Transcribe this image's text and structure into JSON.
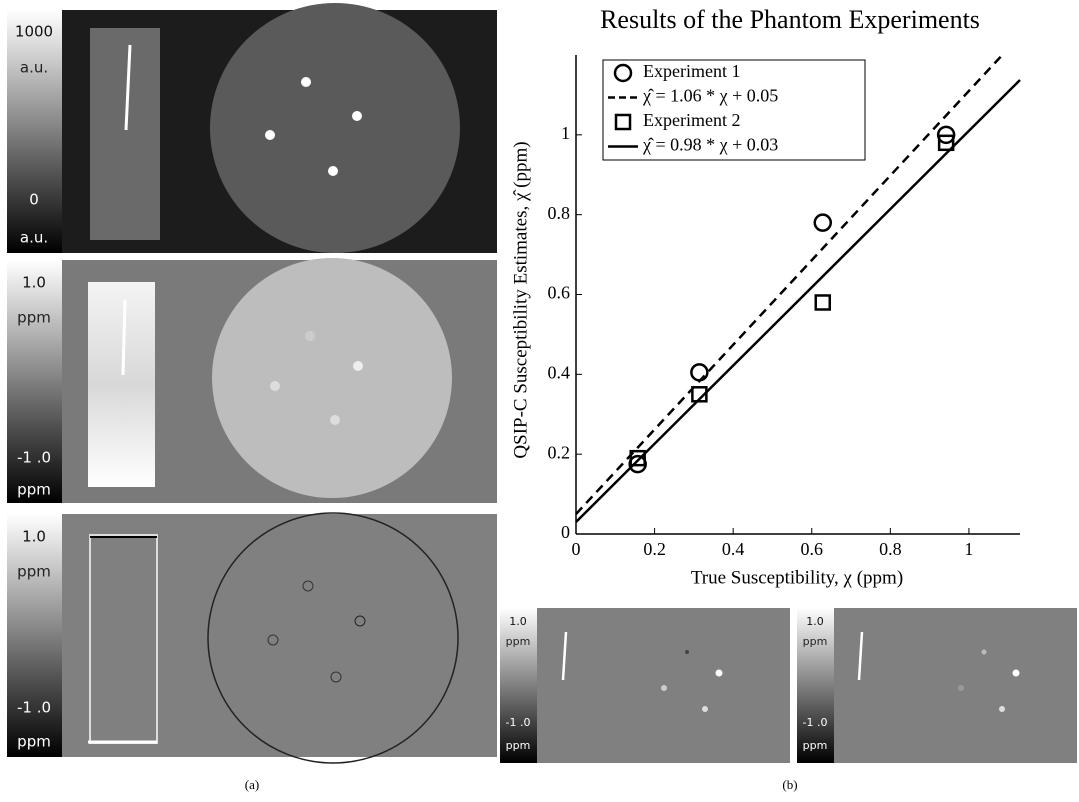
{
  "panels": {
    "a": {
      "label": "(a)",
      "colorbars": [
        {
          "top": "1000",
          "top_unit": "a.u.",
          "bottom": "0",
          "bottom_unit": "a.u."
        },
        {
          "top": "1.0",
          "top_unit": "ppm",
          "bottom": "-1 .0",
          "bottom_unit": "ppm"
        },
        {
          "top": "1.0",
          "top_unit": "ppm",
          "bottom": "-1 .0",
          "bottom_unit": "ppm"
        }
      ]
    },
    "b": {
      "label": "(b)",
      "colorbars": [
        {
          "top": "1.0",
          "top_unit": "ppm",
          "bottom": "-1 .0",
          "bottom_unit": "ppm"
        },
        {
          "top": "1.0",
          "top_unit": "ppm",
          "bottom": "-1 .0",
          "bottom_unit": "ppm"
        }
      ]
    }
  },
  "chart_data": {
    "type": "scatter",
    "title": "Results of the Phantom Experiments",
    "xlabel": "True Susceptibility, χ (ppm)",
    "ylabel": "QSIP-C Susceptibility Estimates, χ̂ (ppm)",
    "xlim": [
      0,
      1.13
    ],
    "ylim": [
      0,
      1.2
    ],
    "xticks": [
      0,
      0.2,
      0.4,
      0.6,
      0.8,
      1
    ],
    "yticks": [
      0,
      0.2,
      0.4,
      0.6,
      0.8,
      1
    ],
    "legend": "upper left",
    "series": [
      {
        "name": "Experiment 1",
        "style": "circle",
        "color": "#000000",
        "x": [
          0.157,
          0.314,
          0.628,
          0.942
        ],
        "values": [
          0.175,
          0.405,
          0.78,
          1.0
        ]
      },
      {
        "name": "χ̂ = 1.06 * χ + 0.05",
        "style": "dashed",
        "color": "#000000",
        "slope": 1.06,
        "intercept": 0.05
      },
      {
        "name": "Experiment 2",
        "style": "square",
        "color": "#000000",
        "x": [
          0.157,
          0.314,
          0.628,
          0.942
        ],
        "values": [
          0.19,
          0.35,
          0.58,
          0.98
        ]
      },
      {
        "name": "χ̂ = 0.98 * χ + 0.03",
        "style": "solid",
        "color": "#000000",
        "slope": 0.98,
        "intercept": 0.03
      }
    ]
  }
}
